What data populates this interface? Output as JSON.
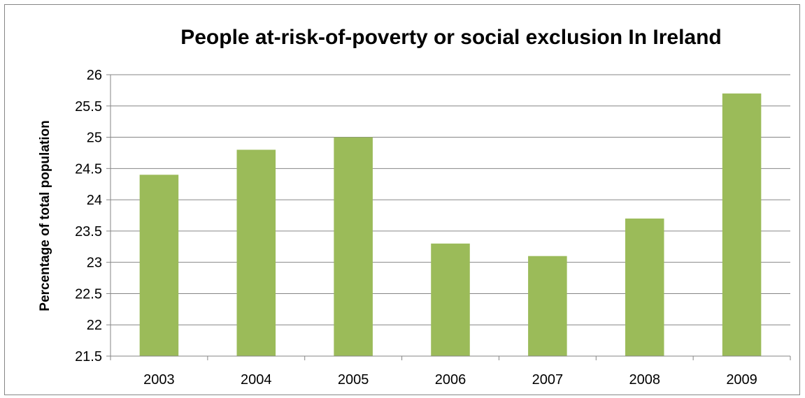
{
  "chart_data": {
    "type": "bar",
    "title": "People at-risk-of-poverty or social exclusion In Ireland",
    "xlabel": "",
    "ylabel": "Percentage of total population",
    "categories": [
      "2003",
      "2004",
      "2005",
      "2006",
      "2007",
      "2008",
      "2009"
    ],
    "values": [
      24.4,
      24.8,
      25.0,
      23.3,
      23.1,
      23.7,
      25.7
    ],
    "ylim": [
      21.5,
      26
    ],
    "yticks": [
      "21.5",
      "22",
      "22.5",
      "23",
      "23.5",
      "24",
      "24.5",
      "25",
      "25.5",
      "26"
    ],
    "grid": true,
    "legend": "none",
    "colors": {
      "bar": "#9BBB59",
      "grid": "#868686",
      "axis": "#868686",
      "frame": "#868686"
    }
  }
}
